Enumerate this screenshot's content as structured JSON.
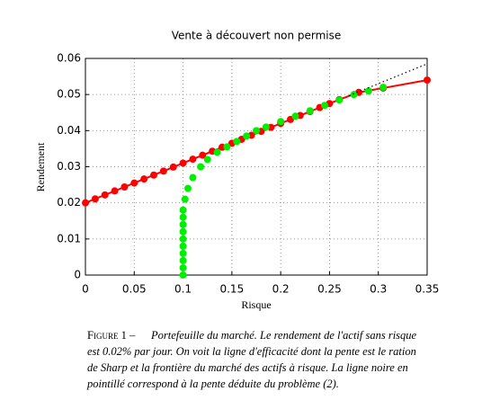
{
  "chart_data": {
    "type": "line",
    "title": "Vente à découvert non permise",
    "xlabel": "Risque",
    "ylabel": "Rendement",
    "xlim": [
      0,
      0.35
    ],
    "xticks": [
      0,
      0.05,
      0.1,
      0.15,
      0.2,
      0.25,
      0.3,
      0.35
    ],
    "ylim": [
      0,
      0.06
    ],
    "yticks": [
      0,
      0.01,
      0.02,
      0.03,
      0.04,
      0.05,
      0.06
    ],
    "grid": true,
    "series": [
      {
        "color": "#ff0000",
        "line": "solid",
        "marker": true,
        "x": [
          0,
          0.01,
          0.02,
          0.03,
          0.04,
          0.05,
          0.06,
          0.07,
          0.08,
          0.09,
          0.1,
          0.11,
          0.12,
          0.13,
          0.14,
          0.15,
          0.16,
          0.17,
          0.18,
          0.19,
          0.2,
          0.21,
          0.22,
          0.23,
          0.24,
          0.25,
          0.26,
          0.28,
          0.305,
          0.35
        ],
        "values": [
          0.02,
          0.0211,
          0.0222,
          0.0233,
          0.0244,
          0.0255,
          0.0266,
          0.0277,
          0.0288,
          0.0299,
          0.031,
          0.0321,
          0.0332,
          0.0343,
          0.0354,
          0.0365,
          0.0376,
          0.0387,
          0.0398,
          0.0409,
          0.042,
          0.0431,
          0.0442,
          0.0453,
          0.0464,
          0.0475,
          0.0486,
          0.0506,
          0.0518,
          0.054
        ]
      },
      {
        "color": "#00ee00",
        "line": "none",
        "marker": true,
        "x": [
          0.1,
          0.1,
          0.1,
          0.1,
          0.1,
          0.1,
          0.1,
          0.1,
          0.1,
          0.1,
          0.102,
          0.105,
          0.11,
          0.118,
          0.125,
          0.135,
          0.145,
          0.155,
          0.165,
          0.175,
          0.185,
          0.2,
          0.215,
          0.23,
          0.245,
          0.26,
          0.275,
          0.29,
          0.305
        ],
        "values": [
          0,
          0.002,
          0.004,
          0.006,
          0.008,
          0.01,
          0.012,
          0.014,
          0.016,
          0.018,
          0.021,
          0.024,
          0.027,
          0.03,
          0.032,
          0.034,
          0.0355,
          0.037,
          0.0385,
          0.04,
          0.041,
          0.0425,
          0.044,
          0.0455,
          0.047,
          0.0485,
          0.05,
          0.051,
          0.052
        ]
      },
      {
        "color": "#000000",
        "line": "dotted",
        "marker": false,
        "x": [
          0.27,
          0.35
        ],
        "values": [
          0.0497,
          0.0585
        ]
      }
    ]
  },
  "caption": {
    "label": "Figure 1 –",
    "lines": [
      "Portefeuille du marché. Le rendement de l'actif sans risque",
      "est 0.02% par jour. On voit la ligne d'efficacité dont la pente est le ration",
      "de Sharp et la frontière du marché des actifs à risque. La ligne noire en",
      "pointillé correspond à la pente déduite du problème (2)."
    ]
  }
}
